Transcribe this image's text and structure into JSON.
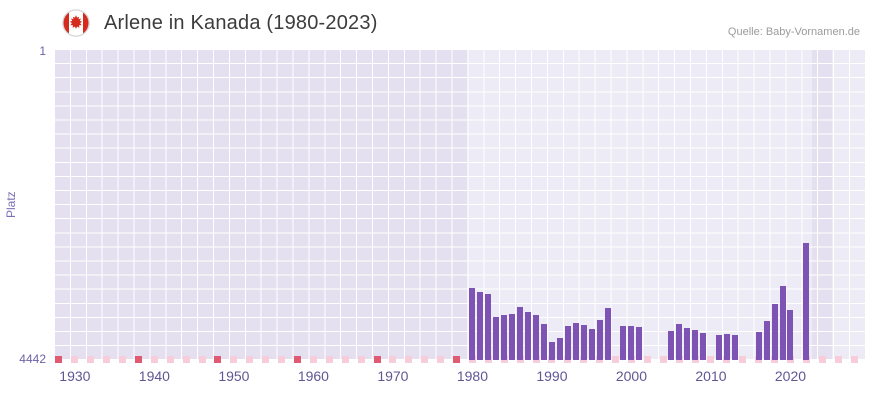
{
  "header": {
    "title": "Arlene in Kanada (1980-2023)",
    "source": "Quelle: Baby-Vornamen.de",
    "flag_icon": "canada-flag"
  },
  "chart_data": {
    "type": "bar",
    "title": "Arlene in Kanada (1980-2023)",
    "xlabel": "",
    "ylabel": "Platz",
    "legend": false,
    "grid": true,
    "y_axis": {
      "min": 1,
      "max": 4442,
      "inverted": true,
      "top_label": "1",
      "bottom_label": "4442"
    },
    "x_axis": {
      "min": 1927.5,
      "max": 2029.5,
      "ticks": [
        1930,
        1940,
        1950,
        1960,
        1970,
        1980,
        1990,
        2000,
        2010,
        2020
      ]
    },
    "series": [
      {
        "name": "Platz",
        "points": [
          {
            "year": 1980,
            "rank": 3410
          },
          {
            "year": 1981,
            "rank": 3470
          },
          {
            "year": 1982,
            "rank": 3490
          },
          {
            "year": 1983,
            "rank": 3820
          },
          {
            "year": 1984,
            "rank": 3800
          },
          {
            "year": 1985,
            "rank": 3780
          },
          {
            "year": 1986,
            "rank": 3680
          },
          {
            "year": 1987,
            "rank": 3750
          },
          {
            "year": 1988,
            "rank": 3800
          },
          {
            "year": 1989,
            "rank": 3930
          },
          {
            "year": 1990,
            "rank": 4180
          },
          {
            "year": 1991,
            "rank": 4120
          },
          {
            "year": 1992,
            "rank": 3960
          },
          {
            "year": 1993,
            "rank": 3910
          },
          {
            "year": 1994,
            "rank": 3940
          },
          {
            "year": 1995,
            "rank": 4000
          },
          {
            "year": 1996,
            "rank": 3870
          },
          {
            "year": 1997,
            "rank": 3700
          },
          {
            "year": 1999,
            "rank": 3960
          },
          {
            "year": 2000,
            "rank": 3950
          },
          {
            "year": 2001,
            "rank": 3970
          },
          {
            "year": 2005,
            "rank": 4020
          },
          {
            "year": 2006,
            "rank": 3930
          },
          {
            "year": 2007,
            "rank": 3990
          },
          {
            "year": 2008,
            "rank": 4010
          },
          {
            "year": 2009,
            "rank": 4060
          },
          {
            "year": 2011,
            "rank": 4090
          },
          {
            "year": 2012,
            "rank": 4070
          },
          {
            "year": 2013,
            "rank": 4080
          },
          {
            "year": 2016,
            "rank": 4040
          },
          {
            "year": 2017,
            "rank": 3890
          },
          {
            "year": 2018,
            "rank": 3640
          },
          {
            "year": 2019,
            "rank": 3380
          },
          {
            "year": 2020,
            "rank": 3720
          },
          {
            "year": 2022,
            "rank": 2760
          }
        ]
      }
    ],
    "no_data_bands": [
      [
        1927.5,
        1979.3
      ],
      [
        2022.7,
        2025.2
      ]
    ],
    "bottom_markers": {
      "start": 1928,
      "end": 2028,
      "step": 2,
      "red_years": [
        1928,
        1938,
        1948,
        1958,
        1968,
        1978
      ]
    },
    "colors": {
      "bar": "#7d53b3",
      "plot_bg": "#edebf6",
      "band": "#e4e0ef",
      "grid": "#ffffff",
      "pink": "#f7cdd9",
      "red": "#e05a72",
      "axis_label": "#6c63a5",
      "axis_title": "#7a6fb5",
      "tick_label": "#5e5794"
    }
  }
}
